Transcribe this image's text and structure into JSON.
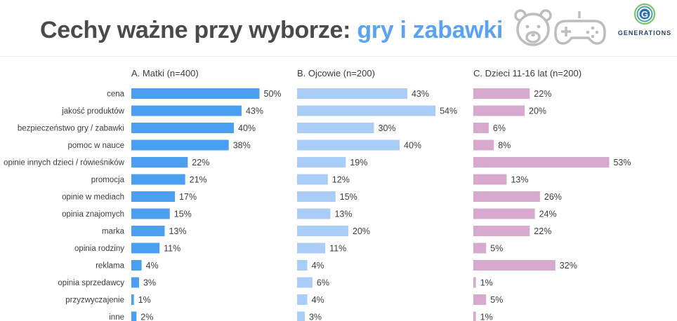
{
  "title": {
    "main": "Cechy ważne przy wyborze: ",
    "highlight": "gry i zabawki"
  },
  "logo": {
    "letter": "G",
    "text": "GENERATIONS"
  },
  "icons": [
    "bear-face-icon",
    "gamepad-icon"
  ],
  "colors": {
    "title": "#4a4a4a",
    "highlight": "#5ba3f0",
    "matki": "#4a9ff0",
    "ojcowie": "#a9cdf6",
    "dzieci": "#d7a9cf"
  },
  "chart_data": {
    "type": "bar",
    "orientation": "horizontal",
    "categories": [
      "cena",
      "jakość produktów",
      "bezpieczeństwo gry / zabawki",
      "pomoc w nauce",
      "opinie innych dzieci / rówieśników",
      "promocja",
      "opinie w mediach",
      "opinia znajomych",
      "marka",
      "opinia rodziny",
      "reklama",
      "opinia sprzedawcy",
      "przyzwyczajenie",
      "inne"
    ],
    "series": [
      {
        "name": "A. Matki (n=400)",
        "values": [
          50,
          43,
          40,
          38,
          22,
          21,
          17,
          15,
          13,
          11,
          4,
          3,
          1,
          2
        ],
        "labels": [
          "50%",
          "43%",
          "40%",
          "38%",
          "22%",
          "21%",
          "17%",
          "15%",
          "13%",
          "11%",
          "4%",
          "3%",
          "1%",
          "2%"
        ]
      },
      {
        "name": "B. Ojcowie (n=200)",
        "values": [
          43,
          54,
          30,
          40,
          19,
          12,
          15,
          13,
          20,
          11,
          4,
          6,
          4,
          3
        ],
        "labels": [
          "43%",
          "54%",
          "30%",
          "40%",
          "19%",
          "12%",
          "15%",
          "13%",
          "20%",
          "11%",
          "4%",
          "6%",
          "4%",
          "3%"
        ]
      },
      {
        "name": "C. Dzieci 11-16 lat (n=200)",
        "values": [
          22,
          20,
          6,
          8,
          53,
          13,
          26,
          24,
          22,
          5,
          32,
          1,
          5,
          1
        ],
        "labels": [
          "22%",
          "20%",
          "6%",
          "8%",
          "53%",
          "13%",
          "26%",
          "24%",
          "22%",
          "5%",
          "32%",
          "1%",
          "5%",
          "1%"
        ]
      }
    ],
    "unit": "%"
  }
}
